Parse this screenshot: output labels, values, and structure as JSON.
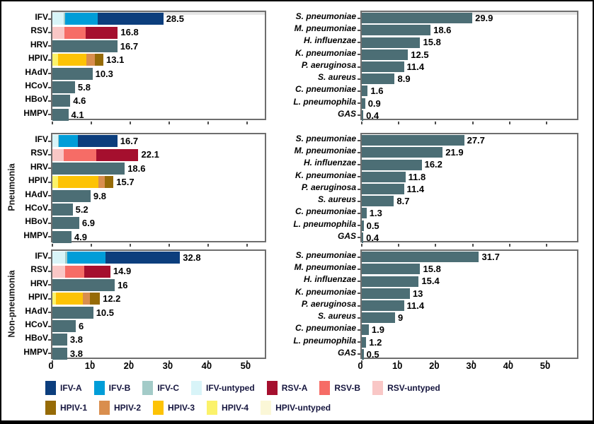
{
  "axis": {
    "ticks": [
      0,
      10,
      20,
      30,
      40,
      50
    ]
  },
  "row_labels": [
    "",
    "Pneumonia",
    "Non-pneumonia"
  ],
  "colors": {
    "IFV-A": "#0c3e7d",
    "IFV-B": "#009dd8",
    "IFV-C": "#a3cbc8",
    "IFV-untyped": "#d8f4f8",
    "RSV-A": "#a50f2e",
    "RSV-B": "#f66c66",
    "RSV-untyped": "#f9c7c6",
    "HPIV-1": "#966b07",
    "HPIV-2": "#d98e4e",
    "HPIV-3": "#fdc305",
    "HPIV-4": "#fbf26a",
    "HPIV-untyped": "#fbf7d7",
    "bar": "#4c6e75"
  },
  "legend": {
    "rows": [
      [
        {
          "label": "IFV-A",
          "color": "IFV-A"
        },
        {
          "label": "IFV-B",
          "color": "IFV-B"
        },
        {
          "label": "IFV-C",
          "color": "IFV-C"
        },
        {
          "label": "IFV-untyped",
          "color": "IFV-untyped"
        },
        {
          "label": "RSV-A",
          "color": "RSV-A"
        },
        {
          "label": "RSV-B",
          "color": "RSV-B"
        },
        {
          "label": "RSV-untyped",
          "color": "RSV-untyped"
        }
      ],
      [
        {
          "label": "HPIV-1",
          "color": "HPIV-1"
        },
        {
          "label": "HPIV-2",
          "color": "HPIV-2"
        },
        {
          "label": "HPIV-3",
          "color": "HPIV-3"
        },
        {
          "label": "HPIV-4",
          "color": "HPIV-4"
        },
        {
          "label": "HPIV-untyped",
          "color": "HPIV-untyped"
        }
      ]
    ]
  },
  "chart_data": [
    {
      "id": "viruses-overall",
      "type": "bar",
      "orientation": "horizontal",
      "stacked": true,
      "row": 0,
      "col": 0,
      "row_label": "",
      "xlim": [
        0,
        55.3
      ],
      "xmax": 55.3,
      "bars": [
        {
          "category": "IFV",
          "total": 28.5,
          "label": "28.5",
          "segments": [
            {
              "color": "IFV-untyped",
              "value": 3.0
            },
            {
              "color": "IFV-C",
              "value": 0.3
            },
            {
              "color": "IFV-B",
              "value": 8.4
            },
            {
              "color": "IFV-A",
              "value": 16.8
            }
          ]
        },
        {
          "category": "RSV",
          "total": 16.8,
          "label": "16.8",
          "segments": [
            {
              "color": "RSV-untyped",
              "value": 3.1
            },
            {
              "color": "RSV-B",
              "value": 5.5
            },
            {
              "color": "RSV-A",
              "value": 8.2
            }
          ]
        },
        {
          "category": "HRV",
          "total": 16.7,
          "label": "16.7",
          "segments": [
            {
              "color": "bar",
              "value": 16.7
            }
          ]
        },
        {
          "category": "HPIV",
          "total": 13.1,
          "label": "13.1",
          "segments": [
            {
              "color": "HPIV-4",
              "value": 1.5
            },
            {
              "color": "HPIV-3",
              "value": 7.3
            },
            {
              "color": "HPIV-2",
              "value": 2.2
            },
            {
              "color": "HPIV-1",
              "value": 2.1
            }
          ]
        },
        {
          "category": "HAdV",
          "total": 10.3,
          "label": "10.3",
          "segments": [
            {
              "color": "bar",
              "value": 10.3
            }
          ]
        },
        {
          "category": "HCoV",
          "total": 5.8,
          "label": "5.8",
          "segments": [
            {
              "color": "bar",
              "value": 5.8
            }
          ]
        },
        {
          "category": "HBoV",
          "total": 4.6,
          "label": "4.6",
          "segments": [
            {
              "color": "bar",
              "value": 4.6
            }
          ]
        },
        {
          "category": "HMPV",
          "total": 4.1,
          "label": "4.1",
          "segments": [
            {
              "color": "bar",
              "value": 4.1
            }
          ]
        }
      ]
    },
    {
      "id": "bacteria-overall",
      "type": "bar",
      "orientation": "horizontal",
      "stacked": false,
      "row": 0,
      "col": 1,
      "row_label": "",
      "xlim": [
        0,
        59
      ],
      "xmax": 59,
      "bars": [
        {
          "category": "S. pneumoniae",
          "total": 29.9,
          "label": "29.9",
          "segments": [
            {
              "color": "bar",
              "value": 29.9
            }
          ]
        },
        {
          "category": "M. pneumoniae",
          "total": 18.6,
          "label": "18.6",
          "segments": [
            {
              "color": "bar",
              "value": 18.6
            }
          ]
        },
        {
          "category": "H. influenzae",
          "total": 15.8,
          "label": "15.8",
          "segments": [
            {
              "color": "bar",
              "value": 15.8
            }
          ]
        },
        {
          "category": "K. pneumoniae",
          "total": 12.5,
          "label": "12.5",
          "segments": [
            {
              "color": "bar",
              "value": 12.5
            }
          ]
        },
        {
          "category": "P. aeruginosa",
          "total": 11.4,
          "label": "11.4",
          "segments": [
            {
              "color": "bar",
              "value": 11.4
            }
          ]
        },
        {
          "category": "S. aureus",
          "total": 8.9,
          "label": "8.9",
          "segments": [
            {
              "color": "bar",
              "value": 8.9
            }
          ]
        },
        {
          "category": "C. pneumoniae",
          "total": 1.6,
          "label": "1.6",
          "segments": [
            {
              "color": "bar",
              "value": 1.6
            }
          ]
        },
        {
          "category": "L. pneumophila",
          "total": 0.9,
          "label": "0.9",
          "segments": [
            {
              "color": "bar",
              "value": 0.9
            }
          ]
        },
        {
          "category": "GAS",
          "total": 0.4,
          "label": "0.4",
          "segments": [
            {
              "color": "bar",
              "value": 0.4
            }
          ]
        }
      ]
    },
    {
      "id": "viruses-pneumonia",
      "type": "bar",
      "orientation": "horizontal",
      "stacked": true,
      "row": 1,
      "col": 0,
      "row_label": "Pneumonia",
      "xlim": [
        0,
        55.3
      ],
      "xmax": 55.3,
      "bars": [
        {
          "category": "IFV",
          "total": 16.7,
          "label": "16.7",
          "segments": [
            {
              "color": "IFV-untyped",
              "value": 1.5
            },
            {
              "color": "IFV-C",
              "value": 0.1
            },
            {
              "color": "IFV-B",
              "value": 4.9
            },
            {
              "color": "IFV-A",
              "value": 10.2
            }
          ]
        },
        {
          "category": "RSV",
          "total": 22.1,
          "label": "22.1",
          "segments": [
            {
              "color": "RSV-untyped",
              "value": 3.0
            },
            {
              "color": "RSV-B",
              "value": 8.2
            },
            {
              "color": "RSV-A",
              "value": 10.9
            }
          ]
        },
        {
          "category": "HRV",
          "total": 18.6,
          "label": "18.6",
          "segments": [
            {
              "color": "bar",
              "value": 18.6
            }
          ]
        },
        {
          "category": "HPIV",
          "total": 15.7,
          "label": "15.7",
          "segments": [
            {
              "color": "HPIV-4",
              "value": 1.5
            },
            {
              "color": "HPIV-3",
              "value": 10.4
            },
            {
              "color": "HPIV-2",
              "value": 1.6
            },
            {
              "color": "HPIV-1",
              "value": 2.2
            }
          ]
        },
        {
          "category": "HAdV",
          "total": 9.8,
          "label": "9.8",
          "segments": [
            {
              "color": "bar",
              "value": 9.8
            }
          ]
        },
        {
          "category": "HCoV",
          "total": 5.2,
          "label": "5.2",
          "segments": [
            {
              "color": "bar",
              "value": 5.2
            }
          ]
        },
        {
          "category": "HBoV",
          "total": 6.9,
          "label": "6.9",
          "segments": [
            {
              "color": "bar",
              "value": 6.9
            }
          ]
        },
        {
          "category": "HMPV",
          "total": 4.9,
          "label": "4.9",
          "segments": [
            {
              "color": "bar",
              "value": 4.9
            }
          ]
        }
      ]
    },
    {
      "id": "bacteria-pneumonia",
      "type": "bar",
      "orientation": "horizontal",
      "stacked": false,
      "row": 1,
      "col": 1,
      "row_label": "Pneumonia",
      "xlim": [
        0,
        59
      ],
      "xmax": 59,
      "bars": [
        {
          "category": "S. pneumoniae",
          "total": 27.7,
          "label": "27.7",
          "segments": [
            {
              "color": "bar",
              "value": 27.7
            }
          ]
        },
        {
          "category": "M. pneumoniae",
          "total": 21.9,
          "label": "21.9",
          "segments": [
            {
              "color": "bar",
              "value": 21.9
            }
          ]
        },
        {
          "category": "H. influenzae",
          "total": 16.2,
          "label": "16.2",
          "segments": [
            {
              "color": "bar",
              "value": 16.2
            }
          ]
        },
        {
          "category": "K. pneumoniae",
          "total": 11.8,
          "label": "11.8",
          "segments": [
            {
              "color": "bar",
              "value": 11.8
            }
          ]
        },
        {
          "category": "P. aeruginosa",
          "total": 11.4,
          "label": "11.4",
          "segments": [
            {
              "color": "bar",
              "value": 11.4
            }
          ]
        },
        {
          "category": "S. aureus",
          "total": 8.7,
          "label": "8.7",
          "segments": [
            {
              "color": "bar",
              "value": 8.7
            }
          ]
        },
        {
          "category": "C. pneumoniae",
          "total": 1.3,
          "label": "1.3",
          "segments": [
            {
              "color": "bar",
              "value": 1.3
            }
          ]
        },
        {
          "category": "L. pneumophila",
          "total": 0.5,
          "label": "0.5",
          "segments": [
            {
              "color": "bar",
              "value": 0.5
            }
          ]
        },
        {
          "category": "GAS",
          "total": 0.4,
          "label": "0.4",
          "segments": [
            {
              "color": "bar",
              "value": 0.4
            }
          ]
        }
      ]
    },
    {
      "id": "viruses-non-pneumonia",
      "type": "bar",
      "orientation": "horizontal",
      "stacked": true,
      "row": 2,
      "col": 0,
      "row_label": "Non-pneumonia",
      "xlim": [
        0,
        55.3
      ],
      "xmax": 55.3,
      "bars": [
        {
          "category": "IFV",
          "total": 32.8,
          "label": "32.8",
          "segments": [
            {
              "color": "IFV-untyped",
              "value": 3.3
            },
            {
              "color": "IFV-C",
              "value": 0.5
            },
            {
              "color": "IFV-B",
              "value": 9.8
            },
            {
              "color": "IFV-A",
              "value": 19.2
            }
          ]
        },
        {
          "category": "RSV",
          "total": 14.9,
          "label": "14.9",
          "segments": [
            {
              "color": "RSV-untyped",
              "value": 3.3
            },
            {
              "color": "RSV-B",
              "value": 4.9
            },
            {
              "color": "RSV-A",
              "value": 6.7
            }
          ]
        },
        {
          "category": "HRV",
          "total": 16,
          "label": "16",
          "segments": [
            {
              "color": "bar",
              "value": 16
            }
          ]
        },
        {
          "category": "HPIV",
          "total": 12.2,
          "label": "12.2",
          "segments": [
            {
              "color": "HPIV-4",
              "value": 0.9
            },
            {
              "color": "HPIV-3",
              "value": 6.9
            },
            {
              "color": "HPIV-2",
              "value": 1.9
            },
            {
              "color": "HPIV-1",
              "value": 2.5
            }
          ]
        },
        {
          "category": "HAdV",
          "total": 10.5,
          "label": "10.5",
          "segments": [
            {
              "color": "bar",
              "value": 10.5
            }
          ]
        },
        {
          "category": "HCoV",
          "total": 6,
          "label": "6",
          "segments": [
            {
              "color": "bar",
              "value": 6
            }
          ]
        },
        {
          "category": "HBoV",
          "total": 3.8,
          "label": "3.8",
          "segments": [
            {
              "color": "bar",
              "value": 3.8
            }
          ]
        },
        {
          "category": "HMPV",
          "total": 3.8,
          "label": "3.8",
          "segments": [
            {
              "color": "bar",
              "value": 3.8
            }
          ]
        }
      ]
    },
    {
      "id": "bacteria-non-pneumonia",
      "type": "bar",
      "orientation": "horizontal",
      "stacked": false,
      "row": 2,
      "col": 1,
      "row_label": "Non-pneumonia",
      "xlim": [
        0,
        59
      ],
      "xmax": 59,
      "bars": [
        {
          "category": "S. pneumoniae",
          "total": 31.7,
          "label": "31.7",
          "segments": [
            {
              "color": "bar",
              "value": 31.7
            }
          ]
        },
        {
          "category": "M. pneumoniae",
          "total": 15.8,
          "label": "15.8",
          "segments": [
            {
              "color": "bar",
              "value": 15.8
            }
          ]
        },
        {
          "category": "H. influenzae",
          "total": 15.4,
          "label": "15.4",
          "segments": [
            {
              "color": "bar",
              "value": 15.4
            }
          ]
        },
        {
          "category": "K. pneumoniae",
          "total": 13,
          "label": "13",
          "segments": [
            {
              "color": "bar",
              "value": 13
            }
          ]
        },
        {
          "category": "P. aeruginosa",
          "total": 11.4,
          "label": "11.4",
          "segments": [
            {
              "color": "bar",
              "value": 11.4
            }
          ]
        },
        {
          "category": "S. aureus",
          "total": 9,
          "label": "9",
          "segments": [
            {
              "color": "bar",
              "value": 9
            }
          ]
        },
        {
          "category": "C. pneumoniae",
          "total": 1.9,
          "label": "1.9",
          "segments": [
            {
              "color": "bar",
              "value": 1.9
            }
          ]
        },
        {
          "category": "L. pneumophila",
          "total": 1.2,
          "label": "1.2",
          "segments": [
            {
              "color": "bar",
              "value": 1.2
            }
          ]
        },
        {
          "category": "GAS",
          "total": 0.5,
          "label": "0.5",
          "segments": [
            {
              "color": "bar",
              "value": 0.5
            }
          ]
        }
      ]
    }
  ]
}
